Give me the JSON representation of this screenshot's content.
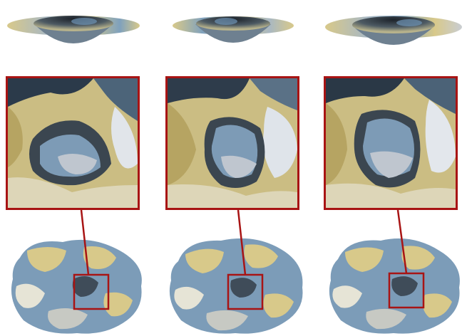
{
  "figure": {
    "panels": [
      {
        "id": "a",
        "label": ""
      },
      {
        "id": "b",
        "label": ""
      },
      {
        "id": "c",
        "label": ""
      }
    ],
    "colors": {
      "frame": "#a81414",
      "tan": "#d8c98a",
      "blue": "#6e93b4",
      "gray": "#c9cdd2",
      "dark": "#2b3440",
      "white": "#e8ecef"
    }
  }
}
